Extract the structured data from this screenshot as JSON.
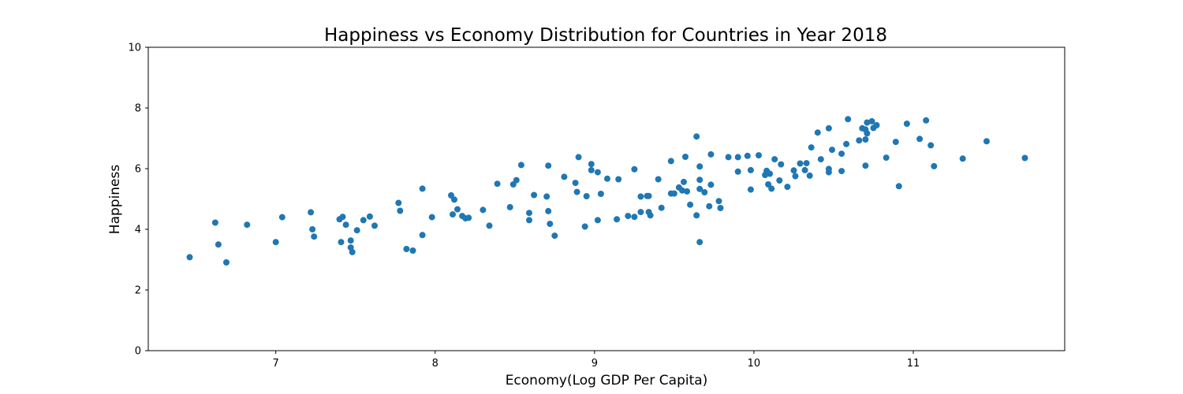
{
  "chart_data": {
    "type": "scatter",
    "title": "Happiness vs Economy Distribution for Countries in Year 2018",
    "xlabel": "Economy(Log GDP Per Capita)",
    "ylabel": "Happiness",
    "xlim": [
      6.2,
      11.95
    ],
    "ylim": [
      0,
      10
    ],
    "xticks": [
      7,
      8,
      9,
      10,
      11
    ],
    "yticks": [
      0,
      2,
      4,
      6,
      8,
      10
    ],
    "grid": false,
    "legend": "none",
    "marker_color": "#1f77b4",
    "points": [
      [
        6.46,
        3.08
      ],
      [
        6.62,
        4.22
      ],
      [
        6.64,
        3.5
      ],
      [
        6.69,
        2.91
      ],
      [
        6.82,
        4.15
      ],
      [
        7.0,
        3.58
      ],
      [
        7.04,
        4.4
      ],
      [
        7.22,
        4.56
      ],
      [
        7.23,
        4.0
      ],
      [
        7.24,
        3.76
      ],
      [
        7.4,
        4.33
      ],
      [
        7.41,
        3.58
      ],
      [
        7.42,
        4.41
      ],
      [
        7.44,
        4.15
      ],
      [
        7.47,
        3.63
      ],
      [
        7.47,
        3.4
      ],
      [
        7.48,
        3.25
      ],
      [
        7.51,
        3.97
      ],
      [
        7.55,
        4.3
      ],
      [
        7.59,
        4.42
      ],
      [
        7.62,
        4.12
      ],
      [
        7.77,
        4.87
      ],
      [
        7.78,
        4.61
      ],
      [
        7.82,
        3.35
      ],
      [
        7.86,
        3.3
      ],
      [
        7.92,
        3.81
      ],
      [
        7.92,
        5.34
      ],
      [
        7.98,
        4.4
      ],
      [
        8.1,
        5.12
      ],
      [
        8.11,
        4.49
      ],
      [
        8.12,
        4.98
      ],
      [
        8.14,
        4.66
      ],
      [
        8.17,
        4.44
      ],
      [
        8.19,
        4.36
      ],
      [
        8.21,
        4.38
      ],
      [
        8.3,
        4.64
      ],
      [
        8.34,
        4.12
      ],
      [
        8.39,
        5.5
      ],
      [
        8.47,
        4.73
      ],
      [
        8.49,
        5.48
      ],
      [
        8.51,
        5.62
      ],
      [
        8.54,
        6.12
      ],
      [
        8.59,
        4.54
      ],
      [
        8.59,
        4.3
      ],
      [
        8.62,
        5.13
      ],
      [
        8.7,
        5.08
      ],
      [
        8.71,
        6.1
      ],
      [
        8.71,
        4.6
      ],
      [
        8.72,
        4.18
      ],
      [
        8.75,
        3.79
      ],
      [
        8.81,
        5.73
      ],
      [
        8.88,
        5.53
      ],
      [
        8.89,
        5.23
      ],
      [
        8.9,
        6.38
      ],
      [
        8.94,
        4.09
      ],
      [
        8.95,
        5.09
      ],
      [
        8.98,
        6.15
      ],
      [
        8.98,
        5.95
      ],
      [
        9.02,
        5.88
      ],
      [
        9.02,
        4.3
      ],
      [
        9.04,
        5.17
      ],
      [
        9.08,
        5.67
      ],
      [
        9.14,
        4.33
      ],
      [
        9.15,
        5.65
      ],
      [
        9.21,
        4.44
      ],
      [
        9.25,
        4.41
      ],
      [
        9.25,
        5.98
      ],
      [
        9.29,
        5.08
      ],
      [
        9.29,
        4.57
      ],
      [
        9.33,
        5.1
      ],
      [
        9.34,
        5.1
      ],
      [
        9.34,
        4.57
      ],
      [
        9.35,
        4.46
      ],
      [
        9.4,
        5.65
      ],
      [
        9.42,
        4.71
      ],
      [
        9.48,
        6.25
      ],
      [
        9.48,
        5.18
      ],
      [
        9.5,
        5.18
      ],
      [
        9.53,
        5.38
      ],
      [
        9.55,
        5.28
      ],
      [
        9.56,
        5.56
      ],
      [
        9.57,
        6.39
      ],
      [
        9.58,
        5.25
      ],
      [
        9.6,
        4.81
      ],
      [
        9.64,
        7.06
      ],
      [
        9.64,
        4.46
      ],
      [
        9.66,
        6.07
      ],
      [
        9.66,
        5.63
      ],
      [
        9.66,
        5.33
      ],
      [
        9.66,
        3.58
      ],
      [
        9.69,
        5.22
      ],
      [
        9.72,
        4.76
      ],
      [
        9.73,
        6.47
      ],
      [
        9.73,
        5.47
      ],
      [
        9.78,
        4.93
      ],
      [
        9.79,
        4.7
      ],
      [
        9.84,
        6.38
      ],
      [
        9.9,
        6.38
      ],
      [
        9.9,
        5.9
      ],
      [
        9.96,
        6.42
      ],
      [
        9.98,
        5.95
      ],
      [
        9.98,
        5.31
      ],
      [
        10.03,
        6.44
      ],
      [
        10.07,
        5.79
      ],
      [
        10.08,
        5.93
      ],
      [
        10.09,
        5.48
      ],
      [
        10.1,
        5.83
      ],
      [
        10.11,
        5.34
      ],
      [
        10.13,
        6.31
      ],
      [
        10.16,
        5.61
      ],
      [
        10.17,
        6.14
      ],
      [
        10.21,
        5.4
      ],
      [
        10.25,
        5.94
      ],
      [
        10.26,
        5.75
      ],
      [
        10.29,
        6.17
      ],
      [
        10.32,
        5.95
      ],
      [
        10.33,
        6.18
      ],
      [
        10.35,
        5.77
      ],
      [
        10.36,
        6.7
      ],
      [
        10.4,
        7.19
      ],
      [
        10.42,
        6.31
      ],
      [
        10.47,
        5.99
      ],
      [
        10.47,
        5.88
      ],
      [
        10.47,
        7.33
      ],
      [
        10.49,
        6.62
      ],
      [
        10.55,
        6.49
      ],
      [
        10.55,
        5.92
      ],
      [
        10.58,
        6.81
      ],
      [
        10.59,
        7.63
      ],
      [
        10.66,
        6.93
      ],
      [
        10.68,
        7.33
      ],
      [
        10.7,
        7.29
      ],
      [
        10.7,
        6.1
      ],
      [
        10.7,
        6.96
      ],
      [
        10.71,
        7.16
      ],
      [
        10.71,
        7.52
      ],
      [
        10.74,
        7.56
      ],
      [
        10.75,
        7.34
      ],
      [
        10.77,
        7.43
      ],
      [
        10.83,
        6.36
      ],
      [
        10.89,
        6.88
      ],
      [
        10.91,
        5.42
      ],
      [
        10.96,
        7.48
      ],
      [
        11.04,
        6.98
      ],
      [
        11.08,
        7.59
      ],
      [
        11.11,
        6.77
      ],
      [
        11.13,
        6.08
      ],
      [
        11.31,
        6.33
      ],
      [
        11.46,
        6.9
      ],
      [
        11.7,
        6.35
      ]
    ]
  }
}
